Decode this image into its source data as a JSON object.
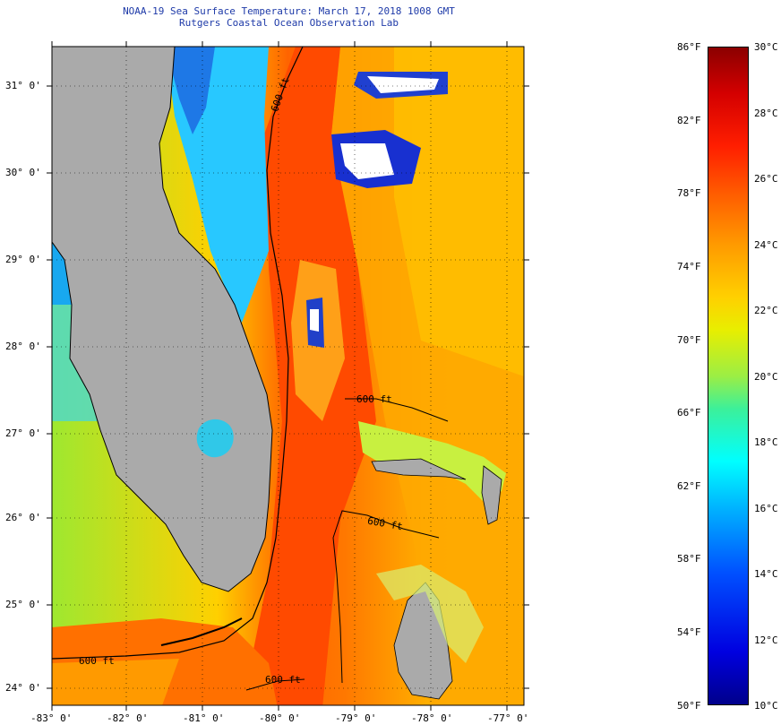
{
  "title_line1": "NOAA-19 Sea Surface Temperature:  March 17, 2018 1008 GMT",
  "title_line2": "Rutgers Coastal Ocean Observation Lab",
  "latitude_labels": [
    "31° 0'",
    "30° 0'",
    "29° 0'",
    "28° 0'",
    "27° 0'",
    "26° 0'",
    "25° 0'",
    "24° 0'"
  ],
  "longitude_labels": [
    "-83° 0'",
    "-82° 0'",
    "-81° 0'",
    "-80° 0'",
    "-79° 0'",
    "-78° 0'",
    "-77° 0'"
  ],
  "contour_label": "600 ft",
  "contour_label_short": "600 ft",
  "colorbar": {
    "fahrenheit_labels": [
      "86°F",
      "82°F",
      "78°F",
      "74°F",
      "70°F",
      "66°F",
      "62°F",
      "58°F",
      "54°F",
      "50°F"
    ],
    "celsius_labels": [
      "30°C",
      "28°C",
      "26°C",
      "24°C",
      "22°C",
      "20°C",
      "18°C",
      "16°C",
      "14°C",
      "12°C",
      "10°C"
    ]
  },
  "colors": {
    "land": "#aaaaaa",
    "title_text": "#1e3aa8",
    "warm_water": "#ff5a00",
    "cool_water": "#ffd000"
  }
}
